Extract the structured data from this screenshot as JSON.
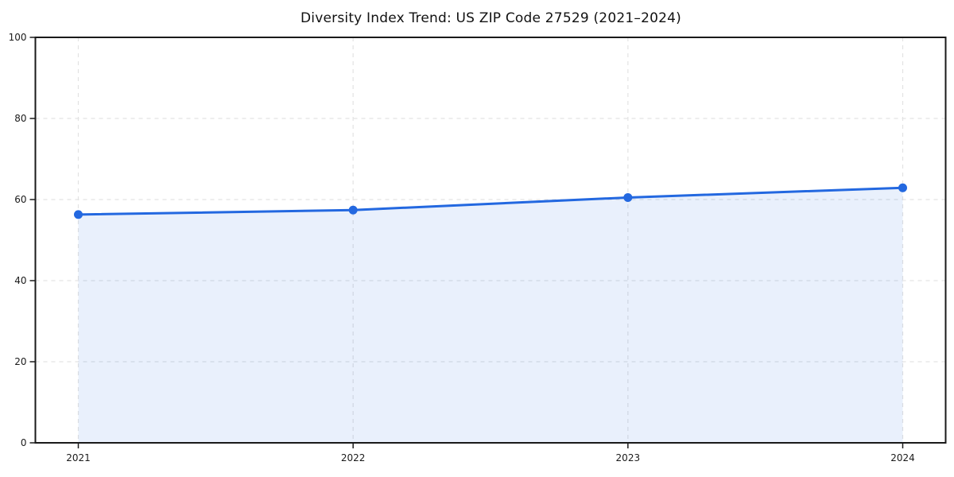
{
  "page": {
    "background": "#ffffff"
  },
  "chart_data": {
    "type": "line",
    "title": "Diversity Index Trend: US ZIP Code 27529 (2021–2024)",
    "categories": [
      "2021",
      "2022",
      "2023",
      "2024"
    ],
    "series": [
      {
        "name": "Diversity Index",
        "values": [
          56.3,
          57.4,
          60.5,
          62.9
        ]
      }
    ],
    "xlabel": "",
    "ylabel": "",
    "ylim": [
      0,
      100
    ],
    "yticks": [
      0,
      20,
      40,
      60,
      80,
      100
    ],
    "grid": "dashed gridlines on both axes",
    "legend": "none",
    "area_fill": true,
    "markers": true,
    "colors": {
      "line": "#2368e0",
      "marker": "#2368e0",
      "area_fill": "rgba(35, 104, 224, 0.10)",
      "gridline": "#e3e3e3",
      "axis": "#1a1a1a",
      "title_text": "#111111",
      "tick_text": "#1a1a1a"
    }
  }
}
